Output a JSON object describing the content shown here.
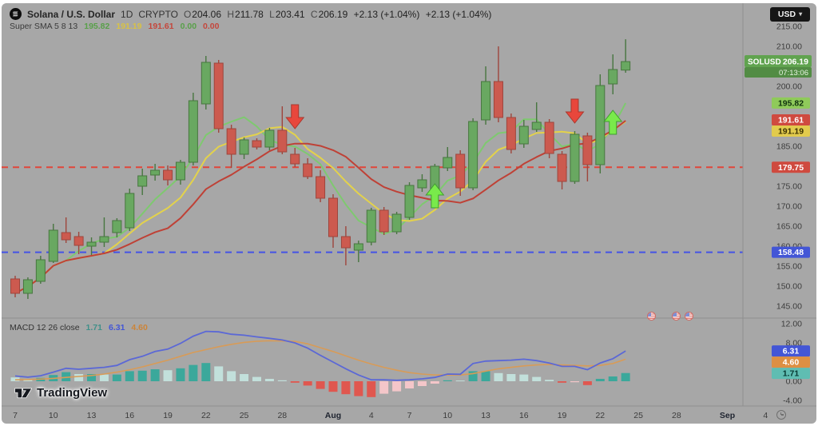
{
  "header": {
    "symbol": "Solana / U.S. Dollar",
    "interval": "1D",
    "market": "CRYPTO",
    "ohlc": [
      {
        "k": "O",
        "v": "204.06"
      },
      {
        "k": "H",
        "v": "211.78"
      },
      {
        "k": "L",
        "v": "203.41"
      },
      {
        "k": "C",
        "v": "206.19"
      }
    ],
    "change": "+2.13 (+1.04%)",
    "change2": "+2.13 (+1.04%)"
  },
  "sma_legend": {
    "title": "Super SMA 5 8 13",
    "values": [
      {
        "text": "195.82",
        "color": "green"
      },
      {
        "text": "191.19",
        "color": "yellow"
      },
      {
        "text": "191.61",
        "color": "red"
      },
      {
        "text": "0.00",
        "color": "green"
      },
      {
        "text": "0.00",
        "color": "red"
      }
    ]
  },
  "macd_legend": {
    "title": "MACD 12 26 close",
    "values": [
      {
        "text": "1.71",
        "color": "teal"
      },
      {
        "text": "6.31",
        "color": "blue"
      },
      {
        "text": "4.60",
        "color": "orange"
      }
    ]
  },
  "price_axis": {
    "currency_button": "USD",
    "ticks": [
      {
        "label": "215.00",
        "price": 215
      },
      {
        "label": "210.00",
        "price": 210
      },
      {
        "label": "200.00",
        "price": 200
      },
      {
        "label": "185.00",
        "price": 185
      },
      {
        "label": "175.00",
        "price": 175
      },
      {
        "label": "170.00",
        "price": 170
      },
      {
        "label": "165.00",
        "price": 165
      },
      {
        "label": "160.00",
        "price": 160
      },
      {
        "label": "155.00",
        "price": 155
      },
      {
        "label": "150.00",
        "price": 150
      },
      {
        "label": "145.00",
        "price": 145
      }
    ],
    "current": {
      "symbol": "SOLUSD",
      "price": "206.19",
      "price_value": 206.19,
      "countdown": "07:13:06"
    },
    "levels": [
      {
        "label": "195.82",
        "price": 195.82,
        "color": "green"
      },
      {
        "label": "191.61",
        "price": 191.61,
        "color": "red"
      },
      {
        "label": "191.19",
        "price": 191.19,
        "color": "yellow"
      },
      {
        "label": "179.75",
        "price": 179.75,
        "color": "redline"
      },
      {
        "label": "158.48",
        "price": 158.48,
        "color": "blue"
      }
    ]
  },
  "macd_axis": {
    "ticks": [
      {
        "label": "12.00",
        "value": 12
      },
      {
        "label": "8.00",
        "value": 8
      },
      {
        "label": "0.00",
        "value": 0
      },
      {
        "label": "-4.00",
        "value": -4
      }
    ],
    "levels": [
      {
        "label": "6.31",
        "value": 6.31,
        "color": "blue"
      },
      {
        "label": "4.60",
        "value": 4.6,
        "color": "orange"
      },
      {
        "label": "1.71",
        "value": 1.71,
        "color": "teal"
      }
    ]
  },
  "time_axis": {
    "ticks": [
      {
        "label": "7",
        "n": 0,
        "bold": false
      },
      {
        "label": "10",
        "n": 3,
        "bold": false
      },
      {
        "label": "13",
        "n": 6,
        "bold": false
      },
      {
        "label": "16",
        "n": 9,
        "bold": false
      },
      {
        "label": "19",
        "n": 12,
        "bold": false
      },
      {
        "label": "22",
        "n": 15,
        "bold": false
      },
      {
        "label": "25",
        "n": 18,
        "bold": false
      },
      {
        "label": "28",
        "n": 21,
        "bold": false
      },
      {
        "label": "Aug",
        "n": 25,
        "bold": true
      },
      {
        "label": "4",
        "n": 28,
        "bold": false
      },
      {
        "label": "7",
        "n": 31,
        "bold": false
      },
      {
        "label": "10",
        "n": 34,
        "bold": false
      },
      {
        "label": "13",
        "n": 37,
        "bold": false
      },
      {
        "label": "16",
        "n": 40,
        "bold": false
      },
      {
        "label": "19",
        "n": 43,
        "bold": false
      },
      {
        "label": "22",
        "n": 46,
        "bold": false
      },
      {
        "label": "25",
        "n": 49,
        "bold": false
      },
      {
        "label": "28",
        "n": 52,
        "bold": false
      },
      {
        "label": "Sep",
        "n": 56,
        "bold": true
      },
      {
        "label": "4",
        "n": 59,
        "bold": false
      }
    ]
  },
  "watermark": "TradingView",
  "colors": {
    "background": "#a7a7a7",
    "candle_up": "#69a861",
    "candle_up_border": "#47763f",
    "candle_down": "#cc5a4f",
    "candle_down_border": "#9e453c",
    "sma5": "#7ec96f",
    "sma8": "#e3d24b",
    "sma13": "#bf4136",
    "resistance_line": "#e1463a",
    "support_line": "#4453e6",
    "hist_pos_strong": "#3ba89b",
    "hist_pos_weak": "#c2e0db",
    "hist_neg_strong": "#e0574f",
    "hist_neg_weak": "#f4c6c9",
    "macd_line": "#5b68d6",
    "signal_line": "#d89b57",
    "arrow_down": "#e8473c",
    "arrow_up": "#79ea4b",
    "label_green_bg": "#8fca5a",
    "label_red_bg": "#cf4a3f",
    "label_yellow_bg": "#e2cb4d",
    "label_blue_bg": "#4356d6",
    "label_orange_bg": "#dd8f43",
    "label_teal_bg": "#5fbdb2",
    "current_bg": "#60a34f",
    "current_countdown_bg": "#528c44",
    "axis_text": "#3c3c3c",
    "separator": "#8f8f8f"
  },
  "chart_data": {
    "type": "candlestick",
    "symbol": "SOLUSD",
    "interval": "1D",
    "title": "Solana / U.S. Dollar 1D CRYPTO",
    "price_range": [
      145,
      215
    ],
    "macd_range": [
      -4,
      12
    ],
    "candles": [
      [
        "Jul 7",
        151.8,
        152.6,
        147.2,
        148.2
      ],
      [
        "Jul 8",
        148.2,
        152.2,
        146.8,
        151.6
      ],
      [
        "Jul 9",
        151.2,
        157.6,
        150.6,
        156.6
      ],
      [
        "Jul 10",
        156.2,
        165.6,
        155.8,
        164.0
      ],
      [
        "Jul 11",
        163.4,
        167.2,
        160.8,
        161.6
      ],
      [
        "Jul 12",
        162.4,
        163.6,
        158.0,
        160.2
      ],
      [
        "Jul 13",
        160.0,
        162.2,
        157.8,
        161.0
      ],
      [
        "Jul 14",
        161.0,
        167.2,
        159.8,
        162.4
      ],
      [
        "Jul 15",
        163.4,
        167.0,
        162.2,
        166.4
      ],
      [
        "Jul 16",
        164.6,
        174.4,
        163.8,
        173.2
      ],
      [
        "Jul 17",
        175.0,
        179.4,
        172.8,
        177.6
      ],
      [
        "Jul 18",
        177.8,
        180.6,
        176.4,
        179.0
      ],
      [
        "Jul 19",
        179.0,
        180.2,
        175.2,
        176.6
      ],
      [
        "Jul 20",
        176.6,
        181.6,
        175.4,
        181.0
      ],
      [
        "Jul 21",
        181.0,
        198.4,
        180.2,
        196.4
      ],
      [
        "Jul 22",
        195.6,
        207.6,
        194.2,
        206.0
      ],
      [
        "Jul 23",
        205.8,
        206.6,
        188.4,
        189.4
      ],
      [
        "Jul 24",
        189.4,
        190.4,
        179.6,
        183.0
      ],
      [
        "Jul 25",
        183.0,
        187.2,
        181.8,
        186.6
      ],
      [
        "Jul 26",
        186.4,
        187.0,
        184.2,
        184.8
      ],
      [
        "Jul 27",
        184.8,
        189.6,
        184.0,
        189.0
      ],
      [
        "Jul 28",
        189.0,
        195.0,
        183.0,
        183.6
      ],
      [
        "Jul 29",
        183.0,
        184.6,
        179.8,
        180.6
      ],
      [
        "Jul 30",
        180.6,
        182.0,
        176.8,
        177.4
      ],
      [
        "Jul 31",
        177.4,
        179.0,
        171.0,
        172.0
      ],
      [
        "Aug 1",
        172.0,
        173.0,
        159.6,
        162.4
      ],
      [
        "Aug 2",
        162.4,
        165.0,
        155.2,
        159.6
      ],
      [
        "Aug 3",
        159.0,
        161.4,
        156.0,
        160.6
      ],
      [
        "Aug 4",
        161.0,
        169.6,
        160.2,
        169.0
      ],
      [
        "Aug 5",
        169.0,
        169.8,
        162.8,
        163.6
      ],
      [
        "Aug 6",
        163.6,
        168.6,
        163.0,
        168.0
      ],
      [
        "Aug 7",
        167.2,
        176.0,
        166.6,
        175.2
      ],
      [
        "Aug 8",
        174.6,
        178.0,
        173.6,
        176.6
      ],
      [
        "Aug 9",
        174.4,
        180.6,
        173.8,
        180.0
      ],
      [
        "Aug 10",
        179.6,
        184.8,
        178.8,
        182.2
      ],
      [
        "Aug 11",
        183.0,
        184.0,
        172.6,
        174.6
      ],
      [
        "Aug 12",
        174.6,
        192.0,
        174.0,
        191.2
      ],
      [
        "Aug 13",
        191.6,
        205.0,
        190.4,
        201.2
      ],
      [
        "Aug 14",
        201.2,
        210.0,
        191.0,
        192.2
      ],
      [
        "Aug 15",
        192.2,
        193.2,
        183.2,
        184.2
      ],
      [
        "Aug 16",
        185.6,
        191.6,
        184.6,
        190.0
      ],
      [
        "Aug 17",
        189.2,
        196.0,
        188.6,
        191.0
      ],
      [
        "Aug 18",
        191.0,
        191.8,
        182.0,
        183.2
      ],
      [
        "Aug 19",
        183.0,
        183.8,
        174.2,
        176.2
      ],
      [
        "Aug 20",
        176.2,
        188.8,
        175.6,
        188.0
      ],
      [
        "Aug 21",
        187.6,
        188.4,
        176.2,
        180.4
      ],
      [
        "Aug 22",
        180.4,
        203.0,
        178.2,
        200.2
      ],
      [
        "Aug 23",
        200.6,
        208.0,
        198.0,
        204.2
      ],
      [
        "Aug 24",
        204.06,
        211.78,
        203.41,
        206.19
      ]
    ],
    "overlays": {
      "sma_periods": [
        5,
        8,
        13
      ],
      "resistance": 179.75,
      "support": 158.48
    },
    "signals": [
      {
        "dir": "down",
        "n": 22,
        "tip_price": 186.6
      },
      {
        "dir": "up",
        "n": 33,
        "tip_price": 176.0
      },
      {
        "dir": "down",
        "n": 44,
        "tip_price": 188.0
      },
      {
        "dir": "up",
        "n": 47,
        "tip_price": 194.4
      }
    ],
    "event_markers": [
      {
        "n": 50
      },
      {
        "n": 52
      },
      {
        "n": 53
      }
    ],
    "macd": {
      "params": "12 26 close",
      "hist": [
        0.8,
        0.5,
        0.7,
        1.3,
        1.9,
        1.5,
        1.5,
        1.4,
        1.4,
        2.1,
        2.2,
        2.5,
        2.3,
        2.7,
        3.4,
        3.8,
        3.1,
        2.1,
        1.5,
        0.9,
        0.5,
        0.2,
        -0.3,
        -0.9,
        -1.6,
        -2.2,
        -2.7,
        -3.1,
        -3.3,
        -2.6,
        -2.1,
        -1.5,
        -1.0,
        -0.5,
        0.2,
        0.15,
        2.1,
        2.1,
        1.7,
        1.5,
        1.4,
        0.9,
        0.3,
        -0.3,
        -0.2,
        -0.8,
        0.5,
        1.0,
        1.71
      ],
      "macd": [
        1.1,
        0.85,
        1.15,
        1.9,
        2.7,
        2.5,
        2.7,
        2.9,
        3.3,
        4.5,
        5.2,
        6.2,
        6.7,
        7.9,
        9.4,
        10.4,
        10.3,
        9.8,
        9.6,
        9.25,
        8.95,
        8.6,
        8.0,
        6.9,
        5.4,
        4.0,
        2.6,
        1.3,
        0.3,
        0.3,
        0.2,
        0.3,
        0.5,
        0.8,
        1.5,
        1.45,
        3.7,
        4.2,
        4.3,
        4.4,
        4.6,
        4.3,
        3.8,
        3.1,
        3.1,
        2.4,
        3.8,
        4.7,
        6.31
      ],
      "signal": [
        0.3,
        0.35,
        0.45,
        0.6,
        0.8,
        1.0,
        1.2,
        1.5,
        1.9,
        2.4,
        3.0,
        3.7,
        4.4,
        5.2,
        6.0,
        6.6,
        7.2,
        7.7,
        8.1,
        8.35,
        8.45,
        8.4,
        8.3,
        7.8,
        7.0,
        6.2,
        5.3,
        4.4,
        3.6,
        2.9,
        2.3,
        1.8,
        1.5,
        1.3,
        1.3,
        1.3,
        1.6,
        2.1,
        2.6,
        2.9,
        3.2,
        3.4,
        3.5,
        3.4,
        3.3,
        3.2,
        3.3,
        3.7,
        4.6
      ]
    }
  }
}
